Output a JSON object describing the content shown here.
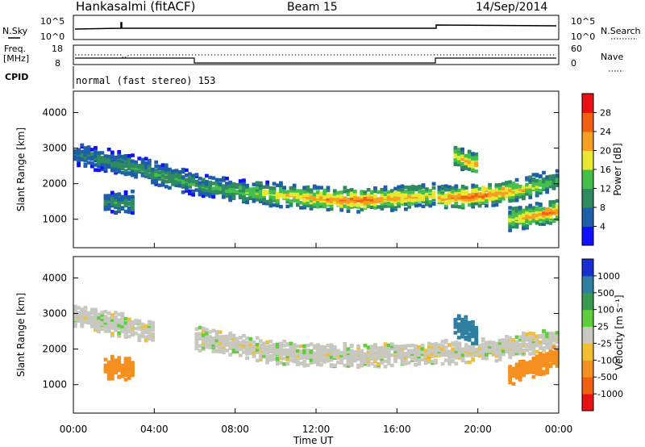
{
  "header": {
    "station": "Hankasalmi (fitACF)",
    "beam": "Beam 15",
    "date": "14/Sep/2014"
  },
  "nsky_panel": {
    "left_label": "N.Sky",
    "left_ticks": [
      "10^5",
      "10^0"
    ],
    "right_label": "N.Search",
    "right_ticks": [
      "10^5",
      "10^0"
    ]
  },
  "freq_panel": {
    "left_label_1": "Freq.",
    "left_label_2": "[MHz]",
    "left_ticks": [
      "18",
      "8"
    ],
    "right_label": "Nave",
    "right_ticks": [
      "60",
      "0"
    ]
  },
  "cpid": {
    "label": "CPID",
    "mode_text": "normal (fast stereo) 153"
  },
  "time_axis": {
    "label": "Time UT",
    "ticks": [
      "00:00",
      "04:00",
      "08:00",
      "12:00",
      "16:00",
      "20:00",
      "00:00"
    ]
  },
  "chart_data": [
    {
      "type": "heatmap",
      "title": "",
      "xlabel": "Time UT",
      "ylabel": "Slant Range [km]",
      "y_ticks": [
        1000,
        2000,
        3000,
        4000
      ],
      "ylim": [
        200,
        4600
      ],
      "xlim_hours": [
        0,
        24
      ],
      "colorbar": {
        "label": "Power [dB]",
        "ticks": [
          "4",
          "8",
          "12",
          "16",
          "20",
          "24",
          "28"
        ],
        "colors": [
          "#1010ff",
          "#1f5fa8",
          "#2f8a5f",
          "#44c04a",
          "#e8e830",
          "#f5a020",
          "#f06010",
          "#e81010"
        ]
      },
      "echo_bands": [
        {
          "name": "main",
          "hours": [
            6.0,
            8.0,
            10.0,
            12.0,
            14.0,
            16.0,
            17.9
          ],
          "range_km": [
            1950,
            1800,
            1700,
            1600,
            1550,
            1600,
            1700
          ],
          "level": [
            10,
            14,
            18,
            22,
            26,
            22,
            18
          ]
        },
        {
          "name": "post-18",
          "hours": [
            18.0,
            19.5,
            21.0,
            22.5,
            24.0
          ],
          "range_km": [
            1600,
            1650,
            1750,
            1900,
            2100
          ],
          "level": [
            22,
            26,
            24,
            18,
            12
          ]
        },
        {
          "name": "late",
          "hours": [
            21.5,
            22.5,
            23.5,
            24.0
          ],
          "range_km": [
            1000,
            1100,
            1200,
            1250
          ],
          "level": [
            18,
            22,
            24,
            24
          ]
        },
        {
          "name": "early",
          "hours": [
            0.0,
            2.0,
            4.0,
            6.0
          ],
          "range_km": [
            2850,
            2600,
            2300,
            2000
          ],
          "level": [
            8,
            10,
            12,
            12
          ]
        },
        {
          "name": "patch-2h",
          "hours": [
            1.5,
            3.0
          ],
          "range_km": [
            1500,
            1450
          ],
          "level": [
            10,
            12
          ]
        },
        {
          "name": "upper-19h",
          "hours": [
            18.8,
            20.0
          ],
          "range_km": [
            2800,
            2500
          ],
          "level": [
            20,
            24
          ]
        }
      ]
    },
    {
      "type": "heatmap",
      "title": "",
      "xlabel": "Time UT",
      "ylabel": "Slant Range [km]",
      "y_ticks": [
        1000,
        2000,
        3000,
        4000
      ],
      "ylim": [
        200,
        4600
      ],
      "xlim_hours": [
        0,
        24
      ],
      "colorbar": {
        "label": "Velocity [m s⁻¹]",
        "ticks": [
          "1000",
          "500",
          "100",
          "25",
          "-25",
          "-100",
          "-500",
          "-1000"
        ],
        "colors": [
          "#1a2fd0",
          "#2f7fa0",
          "#3a9a50",
          "#5ecf3a",
          "#c8c8c0",
          "#f0c030",
          "#f59020",
          "#f06010",
          "#e81010"
        ]
      },
      "echo_bands": [
        {
          "name": "ground-scatter",
          "hours": [
            6.0,
            10.0,
            14.0,
            18.0,
            21.0,
            24.0
          ],
          "range_km": [
            2300,
            1900,
            1800,
            1900,
            2000,
            2300
          ],
          "velocity": [
            0,
            0,
            0,
            0,
            0,
            0
          ]
        },
        {
          "name": "early-gray",
          "hours": [
            0.0,
            2.0,
            4.0
          ],
          "range_km": [
            2900,
            2700,
            2500
          ],
          "velocity": [
            0,
            0,
            0
          ]
        },
        {
          "name": "patch-2h",
          "hours": [
            1.5,
            3.0
          ],
          "range_km": [
            1500,
            1450
          ],
          "velocity": [
            -150,
            -150
          ]
        },
        {
          "name": "late-orange",
          "hours": [
            21.5,
            24.0
          ],
          "range_km": [
            1300,
            1800
          ],
          "velocity": [
            -200,
            -300
          ]
        },
        {
          "name": "upper-19h",
          "hours": [
            18.8,
            20.0
          ],
          "range_km": [
            2700,
            2400
          ],
          "velocity": [
            300,
            500
          ]
        }
      ]
    }
  ]
}
